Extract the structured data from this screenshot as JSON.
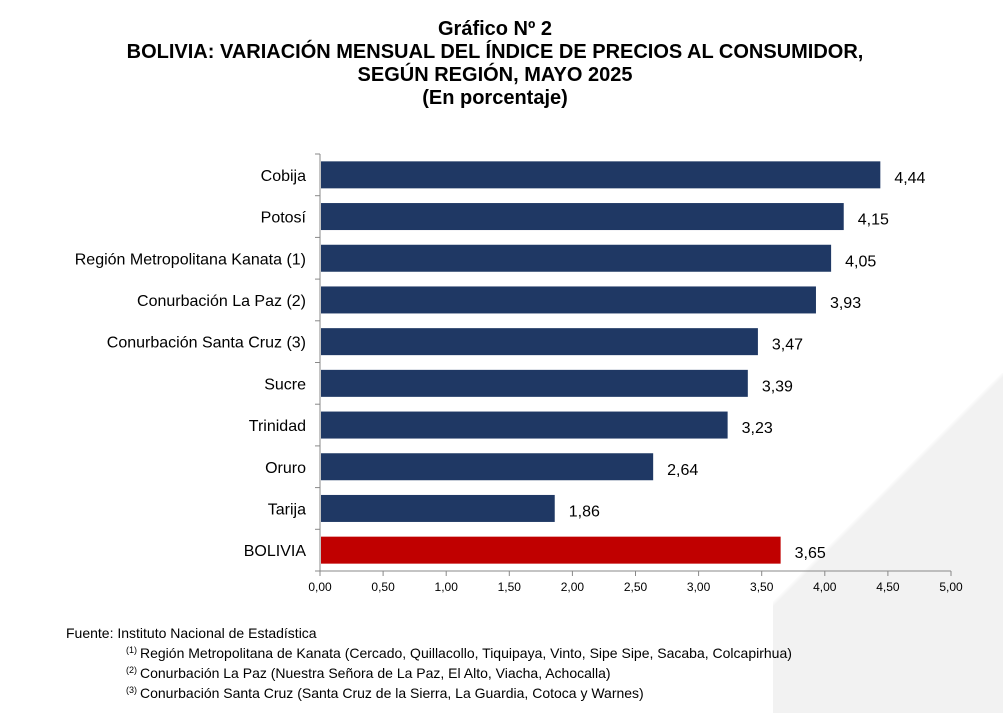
{
  "header": {
    "title": "Gráfico Nº 2",
    "subtitle_line1": "BOLIVIA: VARIACIÓN MENSUAL DEL ÍNDICE DE PRECIOS AL CONSUMIDOR,",
    "subtitle_line2": "SEGÚN REGIÓN, MAYO 2025",
    "unit": "(En porcentaje)"
  },
  "chart_data": {
    "type": "bar",
    "orientation": "horizontal",
    "categories": [
      "Cobija",
      "Potosí",
      "Región Metropolitana Kanata (1)",
      "Conurbación La Paz (2)",
      "Conurbación Santa Cruz (3)",
      "Sucre",
      "Trinidad",
      "Oruro",
      "Tarija",
      "BOLIVIA"
    ],
    "values": [
      4.44,
      4.15,
      4.05,
      3.93,
      3.47,
      3.39,
      3.23,
      2.64,
      1.86,
      3.65
    ],
    "value_labels": [
      "4,44",
      "4,15",
      "4,05",
      "3,93",
      "3,47",
      "3,39",
      "3,23",
      "2,64",
      "1,86",
      "3,65"
    ],
    "colors": [
      "#1f3864",
      "#1f3864",
      "#1f3864",
      "#1f3864",
      "#1f3864",
      "#1f3864",
      "#1f3864",
      "#1f3864",
      "#1f3864",
      "#c00000"
    ],
    "xlim": [
      0,
      5
    ],
    "x_ticks": [
      "0,00",
      "0,50",
      "1,00",
      "1,50",
      "2,00",
      "2,50",
      "3,00",
      "3,50",
      "4,00",
      "4,50",
      "5,00"
    ],
    "grid": false,
    "legend": "none"
  },
  "footer": {
    "source": "Fuente: Instituto Nacional de Estadística",
    "notes": [
      {
        "mark": "(1)",
        "text": "Región Metropolitana de Kanata (Cercado, Quillacollo, Tiquipaya, Vinto, Sipe Sipe, Sacaba, Colcapirhua)"
      },
      {
        "mark": "(2)",
        "text": "Conurbación La Paz (Nuestra Señora de La Paz, El Alto, Viacha, Achocalla)"
      },
      {
        "mark": "(3)",
        "text": "Conurbación Santa Cruz (Santa Cruz de la Sierra, La Guardia, Cotoca y Warnes)"
      }
    ]
  }
}
